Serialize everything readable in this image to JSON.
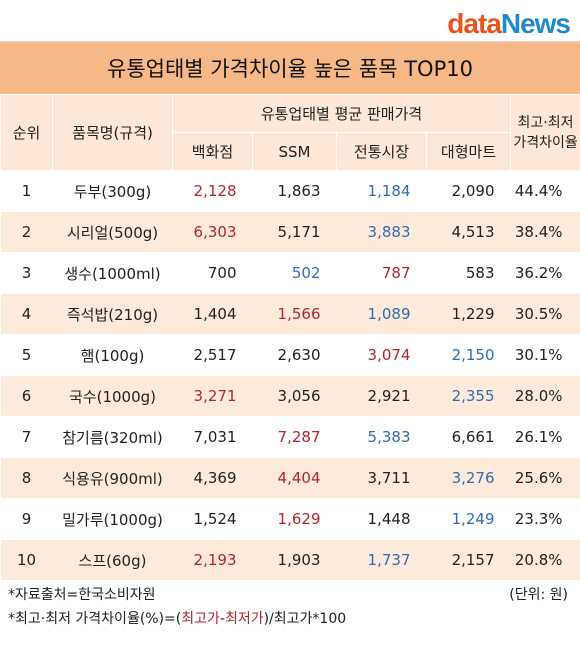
{
  "logo": {
    "part1": "data",
    "part2": "News"
  },
  "title": "유통업태별 가격차이율 높은 품목 TOP10",
  "headers": {
    "rank": "순위",
    "name": "품목명(규격)",
    "group": "유통업태별 평균 판매가격",
    "dept": "백화점",
    "ssm": "SSM",
    "market": "전통시장",
    "mart": "대형마트",
    "diff": "최고·최저 가격차이율"
  },
  "rows": [
    {
      "rank": "1",
      "name": "두부(300g)",
      "dept": "2,128",
      "ssm": "1,863",
      "market": "1,184",
      "mart": "2,090",
      "diff": "44.4%",
      "hi": "dept",
      "lo": "market"
    },
    {
      "rank": "2",
      "name": "시리얼(500g)",
      "dept": "6,303",
      "ssm": "5,171",
      "market": "3,883",
      "mart": "4,513",
      "diff": "38.4%",
      "hi": "dept",
      "lo": "market"
    },
    {
      "rank": "3",
      "name": "생수(1000ml)",
      "dept": "700",
      "ssm": "502",
      "market": "787",
      "mart": "583",
      "diff": "36.2%",
      "hi": "market",
      "lo": "ssm"
    },
    {
      "rank": "4",
      "name": "즉석밥(210g)",
      "dept": "1,404",
      "ssm": "1,566",
      "market": "1,089",
      "mart": "1,229",
      "diff": "30.5%",
      "hi": "ssm",
      "lo": "market"
    },
    {
      "rank": "5",
      "name": "햄(100g)",
      "dept": "2,517",
      "ssm": "2,630",
      "market": "3,074",
      "mart": "2,150",
      "diff": "30.1%",
      "hi": "market",
      "lo": "mart"
    },
    {
      "rank": "6",
      "name": "국수(1000g)",
      "dept": "3,271",
      "ssm": "3,056",
      "market": "2,921",
      "mart": "2,355",
      "diff": "28.0%",
      "hi": "dept",
      "lo": "mart"
    },
    {
      "rank": "7",
      "name": "참기름(320ml)",
      "dept": "7,031",
      "ssm": "7,287",
      "market": "5,383",
      "mart": "6,661",
      "diff": "26.1%",
      "hi": "ssm",
      "lo": "market"
    },
    {
      "rank": "8",
      "name": "식용유(900ml)",
      "dept": "4,369",
      "ssm": "4,404",
      "market": "3,711",
      "mart": "3,276",
      "diff": "25.6%",
      "hi": "ssm",
      "lo": "mart"
    },
    {
      "rank": "9",
      "name": "밀가루(1000g)",
      "dept": "1,524",
      "ssm": "1,629",
      "market": "1,448",
      "mart": "1,249",
      "diff": "23.3%",
      "hi": "ssm",
      "lo": "mart"
    },
    {
      "rank": "10",
      "name": "스프(60g)",
      "dept": "2,193",
      "ssm": "1,903",
      "market": "1,737",
      "mart": "2,157",
      "diff": "20.8%",
      "hi": "dept",
      "lo": "market"
    }
  ],
  "footnotes": {
    "source": "*자료출처=한국소비자원",
    "unit": "(단위: 원)",
    "formula_prefix": "*최고·최저 가격차이율(%)=(",
    "formula_high": "최고가",
    "formula_dash": "-",
    "formula_low": "최저가",
    "formula_suffix": ")/최고가*100"
  },
  "colors": {
    "title_bg": "#f6b887",
    "header_bg": "#fde7d6",
    "highest": "#b3262e",
    "lowest": "#2f6db3"
  }
}
